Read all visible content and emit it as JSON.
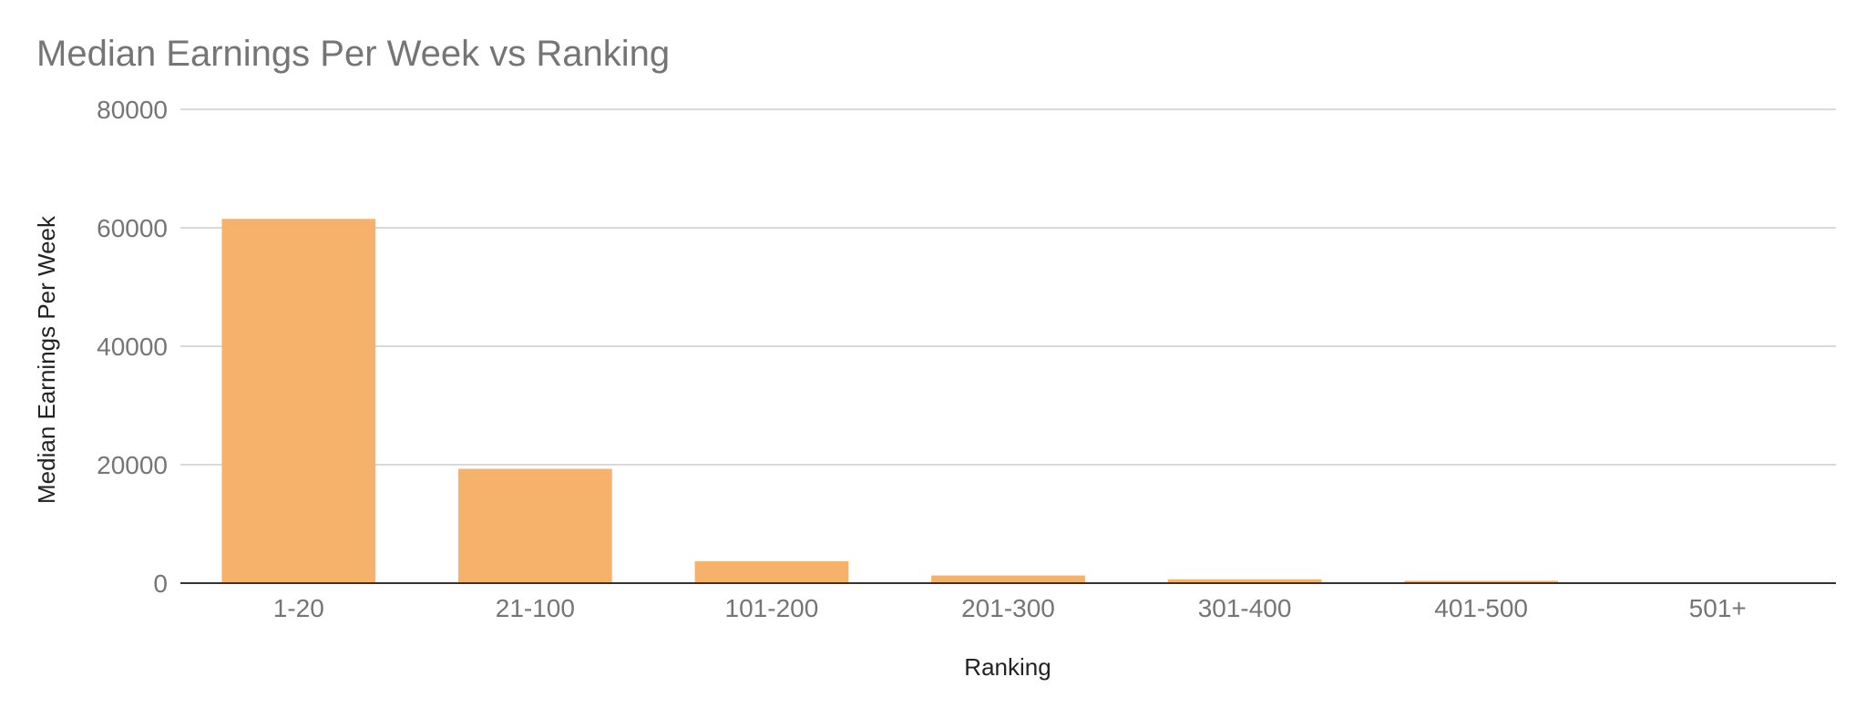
{
  "chart_data": {
    "type": "bar",
    "title": "Median Earnings Per Week vs Ranking",
    "xlabel": "Ranking",
    "ylabel": "Median Earnings Per Week",
    "categories": [
      "1-20",
      "21-100",
      "101-200",
      "201-300",
      "301-400",
      "401-500",
      "501+"
    ],
    "values": [
      61500,
      19300,
      3700,
      1300,
      650,
      400,
      100
    ],
    "ylim": [
      0,
      80000
    ],
    "yticks": [
      "0",
      "20000",
      "40000",
      "60000",
      "80000"
    ],
    "grid": true,
    "legend": "none",
    "bar_color": "#f6b26b"
  }
}
